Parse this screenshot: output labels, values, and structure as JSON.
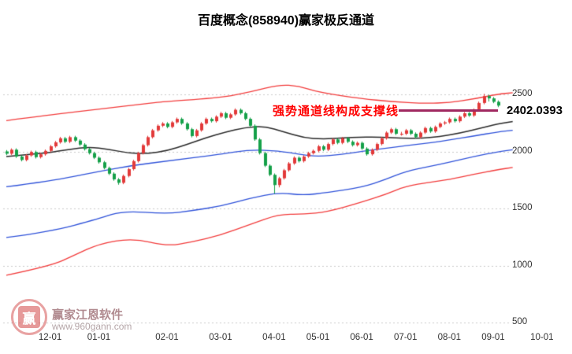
{
  "title": "百度概念(858940)赢家极反通道",
  "last_price": "2402.0393",
  "annotation": {
    "text": "强势通道线构成支撑线",
    "text_color": "#ff0000",
    "line_color": "#a02860",
    "points_to_value": 2362
  },
  "watermark": {
    "brand": "赢家江恩软件",
    "url": "www.960gann.com",
    "logo_char": "赢"
  },
  "chart_data": {
    "type": "candlestick",
    "title": "百度概念(858940)赢家极反通道",
    "symbol": "858940",
    "name": "百度概念",
    "grid": "horizontal-dotted",
    "legend": "none",
    "colors": {
      "up_candle": "#e23a3a",
      "down_candle": "#15a049",
      "grid": "#c9c9c9",
      "axis_text": "#333333"
    },
    "y_axis": {
      "ticks": [
        2500,
        2000,
        1500,
        1000,
        500
      ],
      "range": [
        450,
        3020
      ],
      "side": "right"
    },
    "x_axis": {
      "labels": [
        "12-01",
        "01-01",
        "02-01",
        "03-01",
        "04-01",
        "05-01",
        "06-01",
        "07-01",
        "08-01",
        "09-01",
        "10-01"
      ],
      "tick_indices": [
        9,
        19,
        33,
        44,
        55,
        64,
        73,
        82,
        91,
        100,
        110
      ]
    },
    "candles": [
      [
        2000,
        2012,
        1968,
        1980
      ],
      [
        1980,
        2027,
        1968,
        2015
      ],
      [
        2015,
        2027,
        1943,
        1955
      ],
      [
        1955,
        1967,
        1913,
        1925
      ],
      [
        1925,
        1977,
        1913,
        1965
      ],
      [
        1965,
        2007,
        1953,
        1995
      ],
      [
        1995,
        2007,
        1938,
        1950
      ],
      [
        1950,
        1987,
        1938,
        1975
      ],
      [
        1975,
        2017,
        1963,
        2005
      ],
      [
        2005,
        2057,
        1993,
        2045
      ],
      [
        2045,
        2092,
        2033,
        2080
      ],
      [
        2080,
        2127,
        2068,
        2115
      ],
      [
        2115,
        2127,
        2073,
        2085
      ],
      [
        2085,
        2137,
        2073,
        2125
      ],
      [
        2125,
        2137,
        2083,
        2095
      ],
      [
        2095,
        2107,
        2048,
        2060
      ],
      [
        2060,
        2072,
        2008,
        2020
      ],
      [
        2020,
        2032,
        1973,
        1985
      ],
      [
        1985,
        1997,
        1933,
        1945
      ],
      [
        1945,
        1957,
        1893,
        1905
      ],
      [
        1905,
        1917,
        1843,
        1855
      ],
      [
        1855,
        1867,
        1793,
        1805
      ],
      [
        1805,
        1817,
        1743,
        1755
      ],
      [
        1755,
        1767,
        1708,
        1725
      ],
      [
        1725,
        1797,
        1713,
        1785
      ],
      [
        1785,
        1857,
        1773,
        1845
      ],
      [
        1845,
        1927,
        1833,
        1915
      ],
      [
        1915,
        1997,
        1903,
        1985
      ],
      [
        1985,
        2067,
        1973,
        2055
      ],
      [
        2055,
        2137,
        2043,
        2125
      ],
      [
        2125,
        2197,
        2113,
        2185
      ],
      [
        2185,
        2237,
        2173,
        2225
      ],
      [
        2225,
        2257,
        2213,
        2245
      ],
      [
        2245,
        2257,
        2203,
        2215
      ],
      [
        2215,
        2267,
        2203,
        2255
      ],
      [
        2255,
        2297,
        2243,
        2285
      ],
      [
        2285,
        2297,
        2233,
        2245
      ],
      [
        2245,
        2257,
        2183,
        2195
      ],
      [
        2195,
        2207,
        2123,
        2135
      ],
      [
        2135,
        2197,
        2123,
        2185
      ],
      [
        2185,
        2257,
        2173,
        2245
      ],
      [
        2245,
        2297,
        2233,
        2285
      ],
      [
        2285,
        2297,
        2253,
        2265
      ],
      [
        2265,
        2317,
        2253,
        2305
      ],
      [
        2305,
        2347,
        2293,
        2335
      ],
      [
        2335,
        2347,
        2283,
        2295
      ],
      [
        2295,
        2337,
        2283,
        2325
      ],
      [
        2325,
        2377,
        2313,
        2365
      ],
      [
        2365,
        2377,
        2323,
        2335
      ],
      [
        2335,
        2347,
        2273,
        2285
      ],
      [
        2285,
        2297,
        2213,
        2225
      ],
      [
        2225,
        2237,
        2093,
        2105
      ],
      [
        2105,
        2117,
        1973,
        1985
      ],
      [
        1985,
        1997,
        1863,
        1875
      ],
      [
        1875,
        1887,
        1783,
        1795
      ],
      [
        1795,
        1807,
        1630,
        1705
      ],
      [
        1705,
        1777,
        1685,
        1765
      ],
      [
        1765,
        1847,
        1753,
        1835
      ],
      [
        1835,
        1907,
        1823,
        1895
      ],
      [
        1895,
        1957,
        1883,
        1945
      ],
      [
        1945,
        1957,
        1903,
        1915
      ],
      [
        1915,
        1967,
        1903,
        1955
      ],
      [
        1955,
        1997,
        1943,
        1985
      ],
      [
        1985,
        2017,
        1973,
        2005
      ],
      [
        2005,
        2057,
        1993,
        2045
      ],
      [
        2045,
        2057,
        2003,
        2015
      ],
      [
        2015,
        2077,
        2003,
        2065
      ],
      [
        2065,
        2117,
        2053,
        2105
      ],
      [
        2105,
        2117,
        2063,
        2075
      ],
      [
        2075,
        2127,
        2063,
        2115
      ],
      [
        2115,
        2127,
        2073,
        2085
      ],
      [
        2085,
        2097,
        2043,
        2055
      ],
      [
        2055,
        2087,
        2043,
        2075
      ],
      [
        2075,
        2087,
        2013,
        2025
      ],
      [
        2025,
        2037,
        1963,
        1975
      ],
      [
        1975,
        2027,
        1963,
        2015
      ],
      [
        2015,
        2077,
        2003,
        2065
      ],
      [
        2065,
        2127,
        2053,
        2115
      ],
      [
        2115,
        2177,
        2103,
        2165
      ],
      [
        2165,
        2207,
        2153,
        2195
      ],
      [
        2195,
        2207,
        2143,
        2155
      ],
      [
        2155,
        2172,
        2138,
        2155
      ],
      [
        2155,
        2197,
        2143,
        2185
      ],
      [
        2185,
        2197,
        2143,
        2155
      ],
      [
        2155,
        2167,
        2113,
        2125
      ],
      [
        2125,
        2177,
        2113,
        2165
      ],
      [
        2165,
        2217,
        2153,
        2205
      ],
      [
        2205,
        2217,
        2163,
        2175
      ],
      [
        2175,
        2227,
        2163,
        2215
      ],
      [
        2215,
        2257,
        2203,
        2245
      ],
      [
        2245,
        2267,
        2233,
        2255
      ],
      [
        2255,
        2297,
        2243,
        2285
      ],
      [
        2285,
        2297,
        2253,
        2265
      ],
      [
        2265,
        2317,
        2253,
        2305
      ],
      [
        2305,
        2347,
        2293,
        2335
      ],
      [
        2335,
        2347,
        2303,
        2315
      ],
      [
        2315,
        2377,
        2303,
        2365
      ],
      [
        2365,
        2437,
        2353,
        2425
      ],
      [
        2425,
        2505,
        2413,
        2485
      ],
      [
        2485,
        2497,
        2438,
        2465
      ],
      [
        2465,
        2477,
        2423,
        2435
      ],
      [
        2435,
        2447,
        2388,
        2402
      ]
    ],
    "lines": [
      {
        "name": "upper-red-rail",
        "color": "#f23c3c",
        "width": 1.3,
        "anchors": [
          [
            0,
            2270
          ],
          [
            9,
            2320
          ],
          [
            19,
            2370
          ],
          [
            29,
            2420
          ],
          [
            33,
            2440
          ],
          [
            44,
            2470
          ],
          [
            50,
            2520
          ],
          [
            56,
            2585
          ],
          [
            60,
            2575
          ],
          [
            64,
            2520
          ],
          [
            73,
            2462
          ],
          [
            79,
            2438
          ],
          [
            86,
            2420
          ],
          [
            91,
            2428
          ],
          [
            96,
            2460
          ],
          [
            101,
            2502
          ],
          [
            104,
            2515
          ]
        ]
      },
      {
        "name": "life-line-black",
        "color": "#2a2a2a",
        "width": 1.5,
        "anchors": [
          [
            0,
            1955
          ],
          [
            5,
            1975
          ],
          [
            9,
            1990
          ],
          [
            13,
            2020
          ],
          [
            17,
            2040
          ],
          [
            21,
            2020
          ],
          [
            25,
            1985
          ],
          [
            29,
            1980
          ],
          [
            33,
            2005
          ],
          [
            37,
            2060
          ],
          [
            41,
            2120
          ],
          [
            45,
            2170
          ],
          [
            49,
            2210
          ],
          [
            53,
            2222
          ],
          [
            57,
            2172
          ],
          [
            61,
            2120
          ],
          [
            65,
            2108
          ],
          [
            69,
            2118
          ],
          [
            73,
            2128
          ],
          [
            77,
            2124
          ],
          [
            81,
            2118
          ],
          [
            85,
            2114
          ],
          [
            89,
            2130
          ],
          [
            93,
            2160
          ],
          [
            97,
            2200
          ],
          [
            101,
            2242
          ],
          [
            104,
            2262
          ]
        ]
      },
      {
        "name": "upper-blue-rail",
        "color": "#2f52d9",
        "width": 1.3,
        "anchors": [
          [
            0,
            1690
          ],
          [
            9,
            1740
          ],
          [
            19,
            1825
          ],
          [
            26,
            1878
          ],
          [
            33,
            1915
          ],
          [
            44,
            1975
          ],
          [
            50,
            2015
          ],
          [
            56,
            2005
          ],
          [
            60,
            1975
          ],
          [
            64,
            1955
          ],
          [
            69,
            1975
          ],
          [
            73,
            2000
          ],
          [
            78,
            2028
          ],
          [
            82,
            2050
          ],
          [
            87,
            2075
          ],
          [
            91,
            2100
          ],
          [
            96,
            2135
          ],
          [
            101,
            2172
          ],
          [
            104,
            2185
          ]
        ]
      },
      {
        "name": "lower-blue-rail",
        "color": "#2f52d9",
        "width": 1.3,
        "anchors": [
          [
            0,
            1245
          ],
          [
            9,
            1295
          ],
          [
            19,
            1410
          ],
          [
            24,
            1480
          ],
          [
            33,
            1452
          ],
          [
            38,
            1480
          ],
          [
            44,
            1520
          ],
          [
            50,
            1590
          ],
          [
            56,
            1640
          ],
          [
            61,
            1615
          ],
          [
            66,
            1640
          ],
          [
            73,
            1685
          ],
          [
            78,
            1755
          ],
          [
            82,
            1825
          ],
          [
            87,
            1870
          ],
          [
            91,
            1905
          ],
          [
            96,
            1955
          ],
          [
            101,
            1998
          ],
          [
            104,
            2015
          ]
        ]
      },
      {
        "name": "lower-red-rail",
        "color": "#f23c3c",
        "width": 1.3,
        "anchors": [
          [
            0,
            915
          ],
          [
            9,
            995
          ],
          [
            14,
            1090
          ],
          [
            19,
            1190
          ],
          [
            26,
            1240
          ],
          [
            33,
            1170
          ],
          [
            38,
            1205
          ],
          [
            44,
            1265
          ],
          [
            50,
            1360
          ],
          [
            56,
            1450
          ],
          [
            61,
            1448
          ],
          [
            66,
            1470
          ],
          [
            73,
            1555
          ],
          [
            78,
            1625
          ],
          [
            82,
            1695
          ],
          [
            87,
            1730
          ],
          [
            91,
            1755
          ],
          [
            96,
            1800
          ],
          [
            101,
            1840
          ],
          [
            104,
            1860
          ]
        ]
      }
    ]
  }
}
